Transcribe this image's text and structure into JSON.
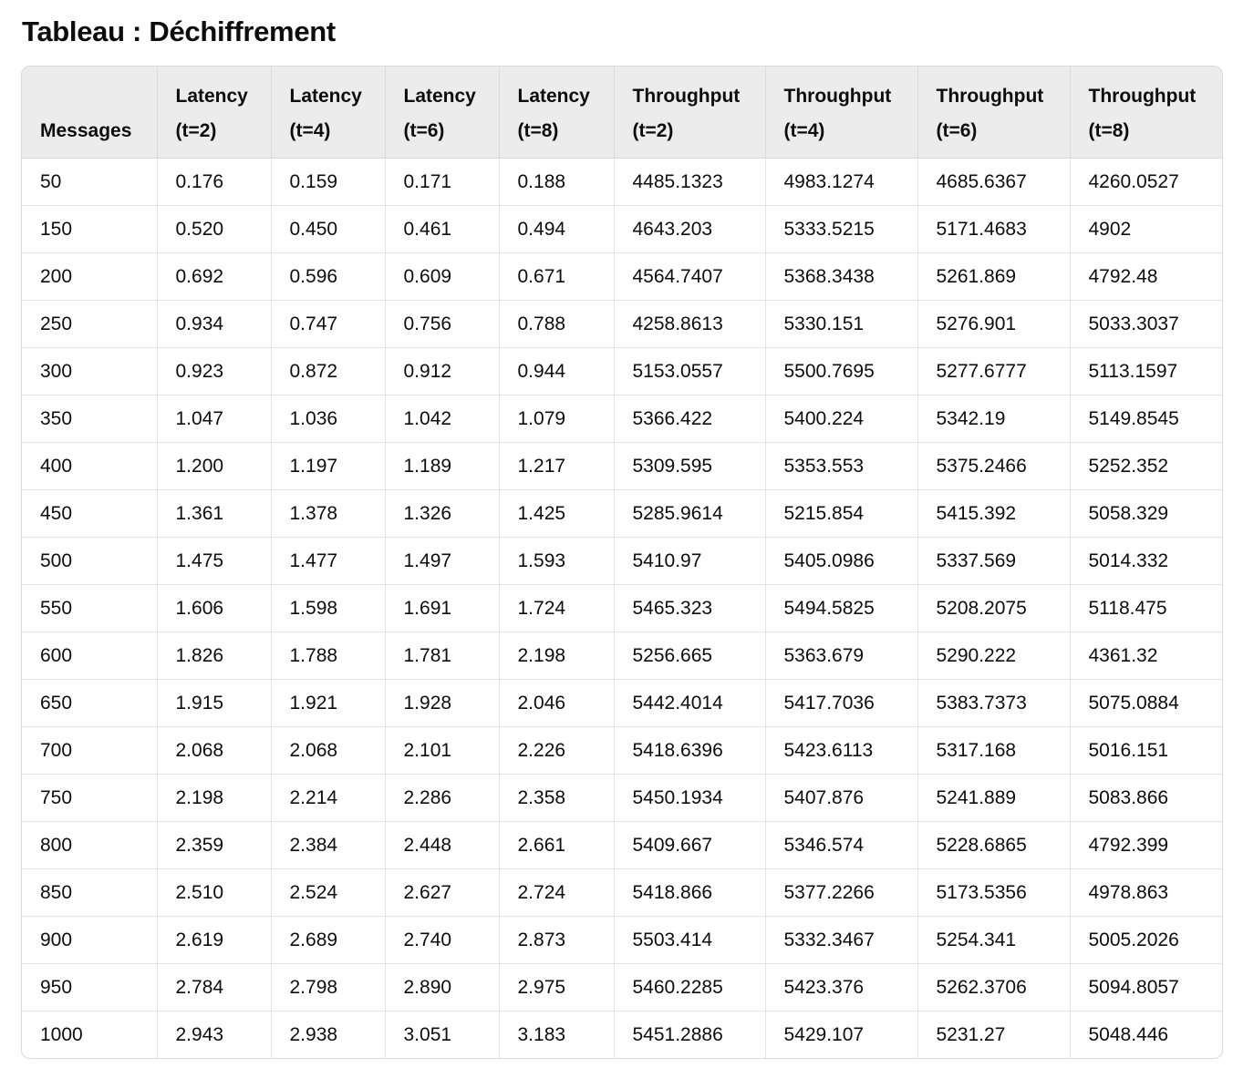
{
  "title": "Tableau : Déchiffrement",
  "table": {
    "headers": [
      [
        "Messages"
      ],
      [
        "Latency",
        "(t=2)"
      ],
      [
        "Latency",
        "(t=4)"
      ],
      [
        "Latency",
        "(t=6)"
      ],
      [
        "Latency",
        "(t=8)"
      ],
      [
        "Throughput",
        "(t=2)"
      ],
      [
        "Throughput",
        "(t=4)"
      ],
      [
        "Throughput",
        "(t=6)"
      ],
      [
        "Throughput",
        "(t=8)"
      ]
    ],
    "rows": [
      [
        "50",
        "0.176",
        "0.159",
        "0.171",
        "0.188",
        "4485.1323",
        "4983.1274",
        "4685.6367",
        "4260.0527"
      ],
      [
        "150",
        "0.520",
        "0.450",
        "0.461",
        "0.494",
        "4643.203",
        "5333.5215",
        "5171.4683",
        "4902"
      ],
      [
        "200",
        "0.692",
        "0.596",
        "0.609",
        "0.671",
        "4564.7407",
        "5368.3438",
        "5261.869",
        "4792.48"
      ],
      [
        "250",
        "0.934",
        "0.747",
        "0.756",
        "0.788",
        "4258.8613",
        "5330.151",
        "5276.901",
        "5033.3037"
      ],
      [
        "300",
        "0.923",
        "0.872",
        "0.912",
        "0.944",
        "5153.0557",
        "5500.7695",
        "5277.6777",
        "5113.1597"
      ],
      [
        "350",
        "1.047",
        "1.036",
        "1.042",
        "1.079",
        "5366.422",
        "5400.224",
        "5342.19",
        "5149.8545"
      ],
      [
        "400",
        "1.200",
        "1.197",
        "1.189",
        "1.217",
        "5309.595",
        "5353.553",
        "5375.2466",
        "5252.352"
      ],
      [
        "450",
        "1.361",
        "1.378",
        "1.326",
        "1.425",
        "5285.9614",
        "5215.854",
        "5415.392",
        "5058.329"
      ],
      [
        "500",
        "1.475",
        "1.477",
        "1.497",
        "1.593",
        "5410.97",
        "5405.0986",
        "5337.569",
        "5014.332"
      ],
      [
        "550",
        "1.606",
        "1.598",
        "1.691",
        "1.724",
        "5465.323",
        "5494.5825",
        "5208.2075",
        "5118.475"
      ],
      [
        "600",
        "1.826",
        "1.788",
        "1.781",
        "2.198",
        "5256.665",
        "5363.679",
        "5290.222",
        "4361.32"
      ],
      [
        "650",
        "1.915",
        "1.921",
        "1.928",
        "2.046",
        "5442.4014",
        "5417.7036",
        "5383.7373",
        "5075.0884"
      ],
      [
        "700",
        "2.068",
        "2.068",
        "2.101",
        "2.226",
        "5418.6396",
        "5423.6113",
        "5317.168",
        "5016.151"
      ],
      [
        "750",
        "2.198",
        "2.214",
        "2.286",
        "2.358",
        "5450.1934",
        "5407.876",
        "5241.889",
        "5083.866"
      ],
      [
        "800",
        "2.359",
        "2.384",
        "2.448",
        "2.661",
        "5409.667",
        "5346.574",
        "5228.6865",
        "4792.399"
      ],
      [
        "850",
        "2.510",
        "2.524",
        "2.627",
        "2.724",
        "5418.866",
        "5377.2266",
        "5173.5356",
        "4978.863"
      ],
      [
        "900",
        "2.619",
        "2.689",
        "2.740",
        "2.873",
        "5503.414",
        "5332.3467",
        "5254.341",
        "5005.2026"
      ],
      [
        "950",
        "2.784",
        "2.798",
        "2.890",
        "2.975",
        "5460.2285",
        "5423.376",
        "5262.3706",
        "5094.8057"
      ],
      [
        "1000",
        "2.943",
        "2.938",
        "3.051",
        "3.183",
        "5451.2886",
        "5429.107",
        "5231.27",
        "5048.446"
      ]
    ]
  }
}
